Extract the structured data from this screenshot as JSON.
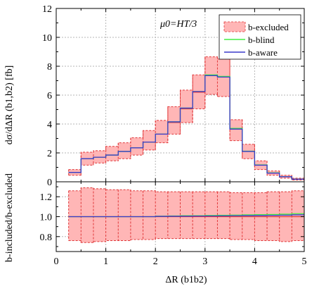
{
  "chart_data": {
    "type": "line",
    "bin_edges": [
      0.25,
      0.5,
      0.75,
      1.0,
      1.25,
      1.5,
      1.75,
      2.0,
      2.25,
      2.5,
      2.75,
      3.0,
      3.25,
      3.5,
      3.75,
      4.0,
      4.25,
      4.5,
      4.75,
      5.0
    ],
    "annotation": "μ0=HT/3",
    "legend": {
      "position": "top-right",
      "entries": [
        "b-excluded",
        "b-blind",
        "b-aware"
      ]
    },
    "xlabel": "ΔR (b1b2)",
    "xlim": [
      0,
      5
    ],
    "xticks": [
      "0",
      "1",
      "2",
      "3",
      "4",
      "5"
    ],
    "colors": {
      "band_fill": "#ffb6b6",
      "band_edge": "#e0383a",
      "b_excluded_line": "#e03c3c",
      "b_blind": "#44ee44",
      "b_aware": "#3b3bcc",
      "grid": "#b5b5b5"
    },
    "top_panel": {
      "ylabel": "dσ/dΔR (b1,b2) [fb]",
      "ylim": [
        0,
        12
      ],
      "yticks": [
        "0",
        "2",
        "4",
        "6",
        "8",
        "10",
        "12"
      ],
      "grid": true,
      "series": [
        {
          "name": "b-excluded",
          "style": "band",
          "central": [
            0.65,
            1.6,
            1.7,
            1.85,
            2.1,
            2.35,
            2.75,
            3.3,
            4.1,
            5.05,
            6.2,
            7.35,
            7.25,
            3.65,
            2.1,
            1.15,
            0.6,
            0.35,
            0.18
          ],
          "lower": [
            0.45,
            1.15,
            1.3,
            1.45,
            1.6,
            1.85,
            2.2,
            2.7,
            3.3,
            4.1,
            5.05,
            6.05,
            5.9,
            2.85,
            1.6,
            0.85,
            0.45,
            0.25,
            0.12
          ],
          "upper": [
            0.85,
            2.05,
            2.15,
            2.45,
            2.7,
            3.05,
            3.55,
            4.25,
            5.2,
            6.35,
            7.4,
            8.65,
            8.5,
            4.3,
            2.6,
            1.45,
            0.75,
            0.45,
            0.25
          ]
        },
        {
          "name": "b-blind",
          "style": "line",
          "values": [
            0.65,
            1.6,
            1.7,
            1.85,
            2.1,
            2.35,
            2.75,
            3.3,
            4.15,
            5.1,
            6.25,
            7.4,
            7.3,
            3.7,
            2.12,
            1.17,
            0.62,
            0.36,
            0.19
          ]
        },
        {
          "name": "b-aware",
          "style": "line",
          "values": [
            0.65,
            1.6,
            1.7,
            1.85,
            2.1,
            2.35,
            2.75,
            3.3,
            4.15,
            5.1,
            6.25,
            7.35,
            7.25,
            3.65,
            2.1,
            1.15,
            0.6,
            0.35,
            0.18
          ]
        }
      ]
    },
    "bottom_panel": {
      "ylabel": "b-included/b-excluded",
      "ylim": [
        0.65,
        1.35
      ],
      "yticks": [
        "0.8",
        "1.0",
        "1.2"
      ],
      "grid": true,
      "series": [
        {
          "name": "b-excluded",
          "style": "band",
          "central": [
            1.0,
            1.0,
            1.0,
            1.0,
            1.0,
            1.0,
            1.0,
            1.0,
            1.0,
            1.0,
            1.0,
            1.0,
            1.0,
            1.0,
            1.0,
            1.0,
            1.0,
            1.0,
            1.0
          ],
          "lower": [
            0.76,
            0.74,
            0.75,
            0.76,
            0.76,
            0.77,
            0.77,
            0.78,
            0.78,
            0.78,
            0.78,
            0.78,
            0.78,
            0.77,
            0.77,
            0.76,
            0.76,
            0.75,
            0.76
          ],
          "upper": [
            1.26,
            1.29,
            1.28,
            1.27,
            1.27,
            1.26,
            1.26,
            1.25,
            1.25,
            1.25,
            1.25,
            1.25,
            1.25,
            1.24,
            1.24,
            1.24,
            1.25,
            1.25,
            1.26
          ]
        },
        {
          "name": "b-blind",
          "style": "line",
          "values": [
            1.0,
            1.0,
            1.0,
            1.0,
            1.0,
            1.0,
            1.0,
            1.005,
            1.007,
            1.01,
            1.01,
            1.012,
            1.014,
            1.016,
            1.018,
            1.02,
            1.022,
            1.025,
            1.03
          ]
        },
        {
          "name": "b-aware",
          "style": "line",
          "values": [
            1.0,
            1.0,
            1.0,
            1.0,
            1.0,
            1.0,
            1.0,
            1.003,
            1.004,
            1.005,
            1.006,
            1.007,
            1.008,
            1.01,
            1.011,
            1.012,
            1.013,
            1.015,
            1.018
          ]
        }
      ]
    }
  }
}
